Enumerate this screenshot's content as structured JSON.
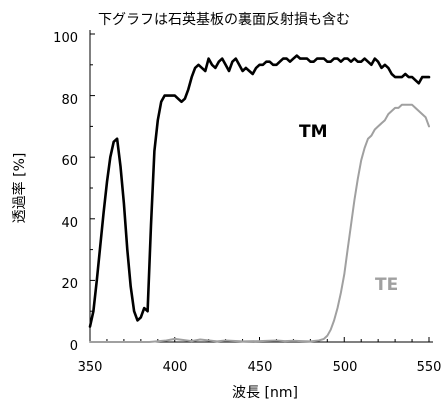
{
  "chart_data": {
    "type": "line",
    "title": "下グラフは石英基板の裏面反射損も含む",
    "xlabel": "波長 [nm]",
    "ylabel": "透過率 [%]",
    "xlim": [
      350,
      550
    ],
    "ylim": [
      0,
      100
    ],
    "x_ticks": [
      "350",
      "400",
      "450",
      "500",
      "550"
    ],
    "y_ticks": [
      "0",
      "20",
      "40",
      "60",
      "80",
      "100"
    ],
    "grid": false,
    "colors": {
      "TM": "#000000",
      "TE": "#a0a0a0",
      "axis": "#000000"
    },
    "series": [
      {
        "name": "TM",
        "x": [
          350,
          352,
          354,
          356,
          358,
          360,
          362,
          364,
          366,
          368,
          370,
          372,
          374,
          376,
          378,
          380,
          382,
          384,
          386,
          388,
          390,
          392,
          394,
          396,
          397,
          398,
          400,
          402,
          404,
          406,
          408,
          410,
          412,
          414,
          416,
          418,
          420,
          422,
          424,
          426,
          428,
          430,
          432,
          434,
          436,
          438,
          440,
          442,
          444,
          446,
          448,
          450,
          452,
          454,
          456,
          458,
          460,
          462,
          464,
          466,
          468,
          470,
          472,
          474,
          476,
          478,
          480,
          482,
          484,
          486,
          488,
          490,
          492,
          494,
          496,
          498,
          500,
          502,
          504,
          506,
          508,
          510,
          512,
          514,
          516,
          518,
          520,
          522,
          524,
          526,
          528,
          530,
          532,
          534,
          536,
          538,
          540,
          542,
          544,
          546,
          548,
          550
        ],
        "values": [
          5,
          10,
          20,
          31,
          42,
          52,
          60,
          65,
          66,
          57,
          45,
          30,
          18,
          10,
          7,
          8,
          11,
          10,
          38,
          62,
          72,
          78,
          80,
          80,
          80,
          80,
          80,
          79,
          78,
          79,
          82,
          86,
          89,
          90,
          89,
          88,
          92,
          90,
          89,
          91,
          92,
          90,
          88,
          91,
          92,
          90,
          88,
          89,
          88,
          87,
          89,
          90,
          90,
          91,
          91,
          90,
          90,
          91,
          92,
          92,
          91,
          92,
          93,
          92,
          92,
          92,
          91,
          91,
          92,
          92,
          92,
          91,
          91,
          92,
          92,
          91,
          92,
          92,
          91,
          92,
          91,
          91,
          92,
          91,
          90,
          92,
          91,
          89,
          90,
          89,
          87,
          86,
          86,
          86,
          87,
          86,
          86,
          85,
          84,
          86,
          86,
          86
        ],
        "label": "TM"
      },
      {
        "name": "TE",
        "x": [
          350,
          385,
          395,
          400,
          410,
          415,
          425,
          430,
          440,
          450,
          460,
          465,
          470,
          475,
          480,
          485,
          488,
          490,
          492,
          494,
          496,
          498,
          500,
          502,
          504,
          506,
          508,
          510,
          512,
          514,
          516,
          518,
          520,
          522,
          524,
          526,
          528,
          530,
          532,
          534,
          536,
          538,
          540,
          542,
          544,
          546,
          548,
          550
        ],
        "values": [
          0,
          0,
          0.5,
          1,
          0.3,
          0.8,
          0.2,
          0.5,
          0.2,
          0.3,
          0.5,
          0.3,
          0.4,
          0.3,
          0.2,
          0.5,
          1,
          2,
          4,
          7,
          11,
          16,
          22,
          30,
          38,
          46,
          53,
          59,
          63,
          66,
          67,
          69,
          70,
          71,
          72,
          74,
          75,
          76,
          76,
          77,
          77,
          77,
          77,
          76,
          75,
          74,
          73,
          70
        ],
        "label": "TE"
      }
    ]
  }
}
